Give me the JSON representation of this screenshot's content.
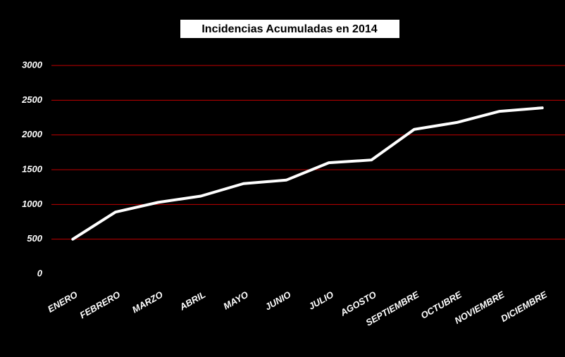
{
  "chart_data": {
    "type": "line",
    "title": "Incidencias Acumuladas en 2014",
    "categories": [
      "ENERO",
      "FEBRERO",
      "MARZO",
      "ABRIL",
      "MAYO",
      "JUNIO",
      "JULIO",
      "AGOSTO",
      "SEPTIEMBRE",
      "OCTUBRE",
      "NOVIEMBRE",
      "DICIEMBRE"
    ],
    "series": [
      {
        "name": "Incidencias",
        "color": "#ffffff",
        "values": [
          500,
          890,
          1030,
          1120,
          1300,
          1350,
          1600,
          1640,
          2080,
          2180,
          2340,
          2390
        ]
      }
    ],
    "ylim": [
      0,
      3000
    ],
    "yticks": [
      0,
      500,
      1000,
      1500,
      2000,
      2500,
      3000
    ],
    "grid": true,
    "grid_color": "#c00000"
  }
}
